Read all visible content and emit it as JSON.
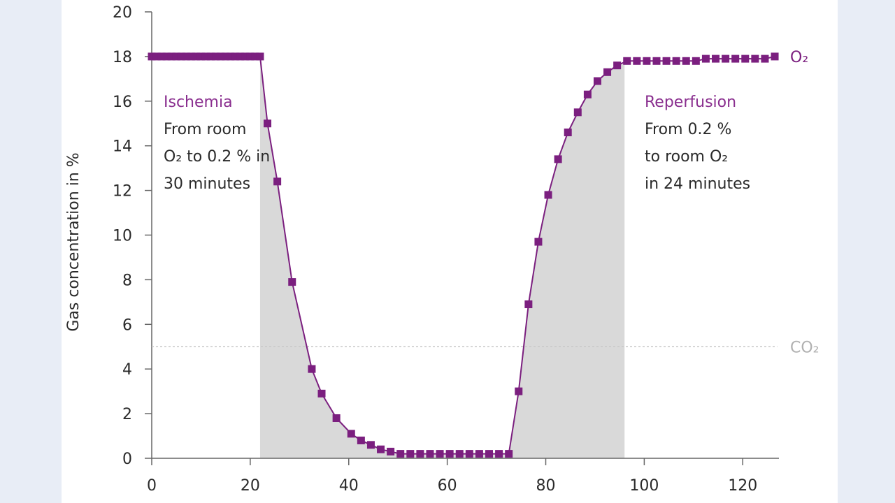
{
  "chart_data": {
    "type": "line",
    "title": "",
    "xlabel": "",
    "ylabel": "Gas concentration in %",
    "xlim": [
      0,
      127
    ],
    "ylim": [
      0,
      20
    ],
    "x_ticks": [
      "0",
      "20",
      "40",
      "60",
      "80",
      "100",
      "120"
    ],
    "y_ticks": [
      "0",
      "2",
      "4",
      "6",
      "8",
      "10",
      "12",
      "14",
      "16",
      "18",
      "20"
    ],
    "grid": false,
    "colors": {
      "o2": "#7b1f7f",
      "co2": "#c8c8c8",
      "shade": "#d9d9d9",
      "annotation_title": "#8a2f8f"
    },
    "series": [
      {
        "name": "O₂",
        "x": [
          0,
          1,
          2,
          3,
          4,
          5,
          6,
          7,
          8,
          9,
          10,
          11,
          12,
          13,
          14,
          15,
          16,
          17,
          18,
          19,
          20,
          21,
          22,
          23.5,
          25.5,
          28.5,
          32.5,
          34.5,
          37.5,
          40.5,
          42.5,
          44.5,
          46.5,
          48.5,
          50.5,
          52.5,
          54.5,
          56.5,
          58.5,
          60.5,
          62.5,
          64.5,
          66.5,
          68.5,
          70.5,
          72.5,
          74.5,
          76.5,
          78.5,
          80.5,
          82.5,
          84.5,
          86.5,
          88.5,
          90.5,
          92.5,
          94.5,
          96.5,
          98.5,
          100.5,
          102.5,
          104.5,
          106.5,
          108.5,
          110.5,
          112.5,
          114.5,
          116.5,
          118.5,
          120.5,
          122.5,
          124.5,
          126.5
        ],
        "y": [
          18,
          18,
          18,
          18,
          18,
          18,
          18,
          18,
          18,
          18,
          18,
          18,
          18,
          18,
          18,
          18,
          18,
          18,
          18,
          18,
          18,
          18,
          18,
          15,
          12.4,
          7.9,
          4.0,
          2.9,
          1.8,
          1.1,
          0.8,
          0.6,
          0.4,
          0.3,
          0.2,
          0.2,
          0.2,
          0.2,
          0.2,
          0.2,
          0.2,
          0.2,
          0.2,
          0.2,
          0.2,
          0.2,
          3.0,
          6.9,
          9.7,
          11.8,
          13.4,
          14.6,
          15.5,
          16.3,
          16.9,
          17.3,
          17.6,
          17.8,
          17.8,
          17.8,
          17.8,
          17.8,
          17.8,
          17.8,
          17.8,
          17.9,
          17.9,
          17.9,
          17.9,
          17.9,
          17.9,
          17.9,
          18.0
        ]
      },
      {
        "name": "CO₂",
        "x": [
          0,
          127
        ],
        "y": [
          5,
          5
        ]
      }
    ],
    "shaded_regions": [
      {
        "x_start": 22,
        "x_end": 96
      }
    ],
    "annotations": [
      {
        "title": "Ischemia",
        "lines": [
          "From room",
          "O₂ to 0.2 % in",
          "30 minutes"
        ]
      },
      {
        "title": "Reperfusion",
        "lines": [
          "From 0.2 %",
          "to room O₂",
          "in 24 minutes"
        ]
      }
    ]
  }
}
